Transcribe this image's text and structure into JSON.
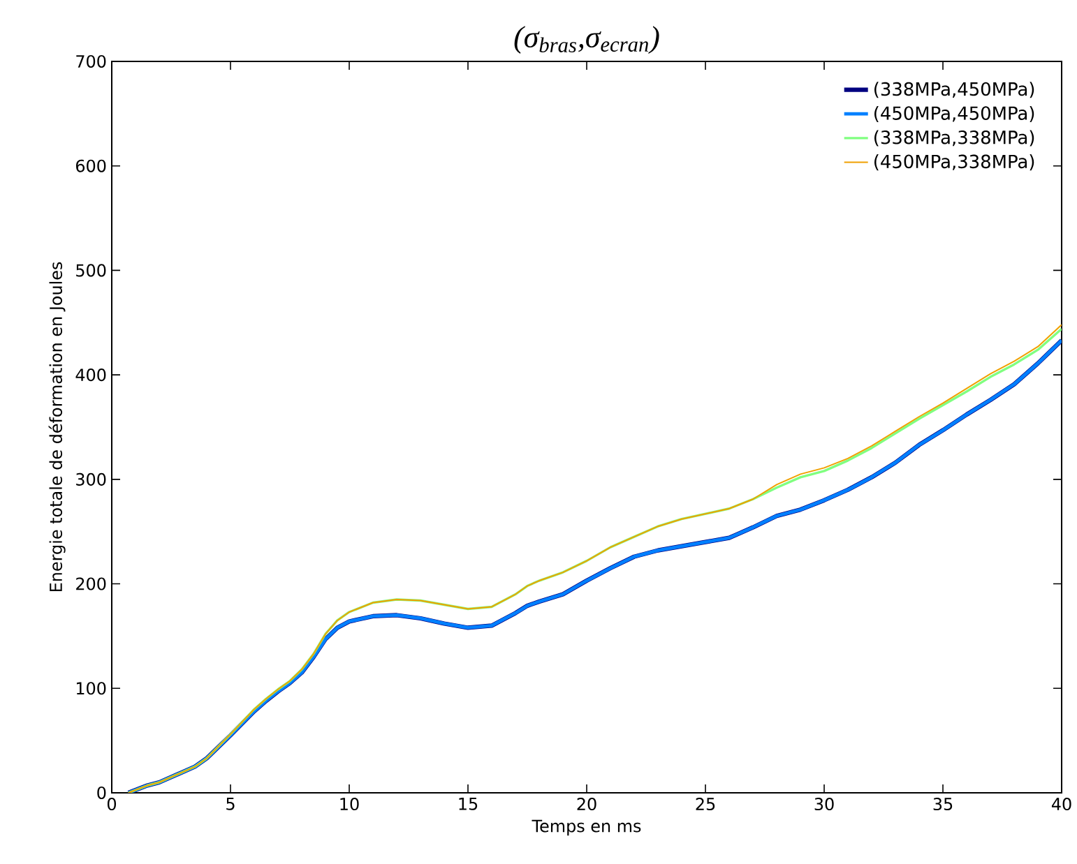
{
  "chart_data": {
    "type": "line",
    "title": "(σ$_{bras}$,σ$_{ecran}$)",
    "xlabel": "Temps en ms",
    "ylabel": "Energie totale de déformation en Joules",
    "xlim": [
      0,
      40
    ],
    "ylim": [
      0,
      700
    ],
    "xticks": [
      0,
      5,
      10,
      15,
      20,
      25,
      30,
      35,
      40
    ],
    "yticks": [
      0,
      100,
      200,
      300,
      400,
      500,
      600,
      700
    ],
    "grid": false,
    "legend": "top right",
    "marker": "none",
    "line_style": "solid",
    "x": [
      0.7,
      1.5,
      2,
      3,
      3.5,
      4,
      5,
      6,
      6.5,
      7,
      7.5,
      8,
      8.5,
      9,
      9.5,
      10,
      11,
      12,
      13,
      14,
      15,
      16,
      17,
      17.5,
      18,
      19,
      20,
      21,
      22,
      23,
      24,
      25,
      26,
      27,
      28,
      29,
      30,
      31,
      32,
      33,
      34,
      35,
      36,
      37,
      38,
      39,
      40
    ],
    "series": [
      {
        "name": "(338MPa,450MPa)",
        "color": "#000080",
        "values": [
          0,
          7,
          10,
          20,
          25,
          33,
          55,
          78,
          88,
          97,
          105,
          115,
          130,
          147,
          158,
          164,
          169,
          170,
          167,
          162,
          158,
          160,
          172,
          179,
          183,
          190,
          203,
          215,
          226,
          232,
          236,
          240,
          244,
          254,
          265,
          271,
          280,
          290,
          302,
          316,
          333,
          347,
          362,
          376,
          391,
          411,
          433
        ]
      },
      {
        "name": "(450MPa,450MPa)",
        "color": "#0080ff",
        "values": [
          0,
          7,
          10,
          20,
          25,
          33,
          55,
          78,
          88,
          97,
          105,
          115,
          130,
          147,
          158,
          164,
          169,
          170,
          167,
          162,
          158,
          160,
          172,
          179,
          183,
          190,
          203,
          215,
          226,
          232,
          236,
          240,
          244,
          254,
          265,
          271,
          280,
          290,
          302,
          316,
          333,
          347,
          362,
          376,
          391,
          411,
          433
        ]
      },
      {
        "name": "(338MPa,338MPa)",
        "color": "#80ff80",
        "values": [
          0,
          7,
          10,
          20,
          25,
          33,
          56,
          80,
          90,
          99,
          107,
          118,
          133,
          152,
          165,
          173,
          182,
          185,
          184,
          180,
          176,
          178,
          190,
          198,
          203,
          211,
          222,
          235,
          245,
          255,
          262,
          267,
          272,
          281,
          292,
          302,
          308,
          318,
          330,
          344,
          358,
          371,
          384,
          398,
          410,
          424,
          444
        ]
      },
      {
        "name": "(450MPa,338MPa)",
        "color": "#f0a000",
        "values": [
          0,
          7,
          10,
          20,
          25,
          33,
          56,
          80,
          90,
          99,
          107,
          118,
          133,
          152,
          165,
          173,
          182,
          185,
          184,
          180,
          176,
          178,
          190,
          198,
          203,
          211,
          222,
          235,
          245,
          255,
          262,
          267,
          272,
          281,
          295,
          305,
          311,
          320,
          332,
          346,
          360,
          373,
          387,
          401,
          413,
          427,
          448
        ]
      }
    ]
  }
}
